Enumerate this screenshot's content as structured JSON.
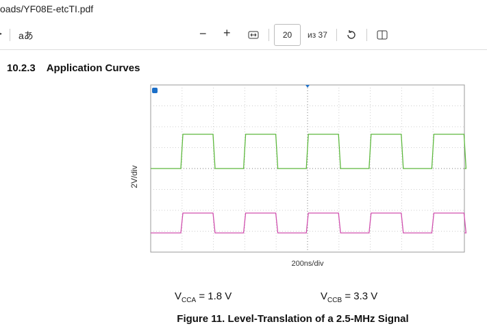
{
  "address_bar": {
    "url": "oads/YF08E-etcTI.pdf"
  },
  "toolbar": {
    "text_size": "aあ",
    "page": "20",
    "page_count": "из 37"
  },
  "document": {
    "section_number": "10.2.3",
    "section_title": "Application Curves",
    "figure": {
      "y_label": "2V/div",
      "x_label": "200ns/div"
    },
    "conditions": [
      {
        "symbol": "V",
        "subscript": "CCA",
        "value": "= 1.8 V"
      },
      {
        "symbol": "V",
        "subscript": "CCB",
        "value": "= 3.3 V"
      }
    ],
    "caption": "Figure 11.  Level-Translation of a 2.5-MHz Signal"
  }
}
